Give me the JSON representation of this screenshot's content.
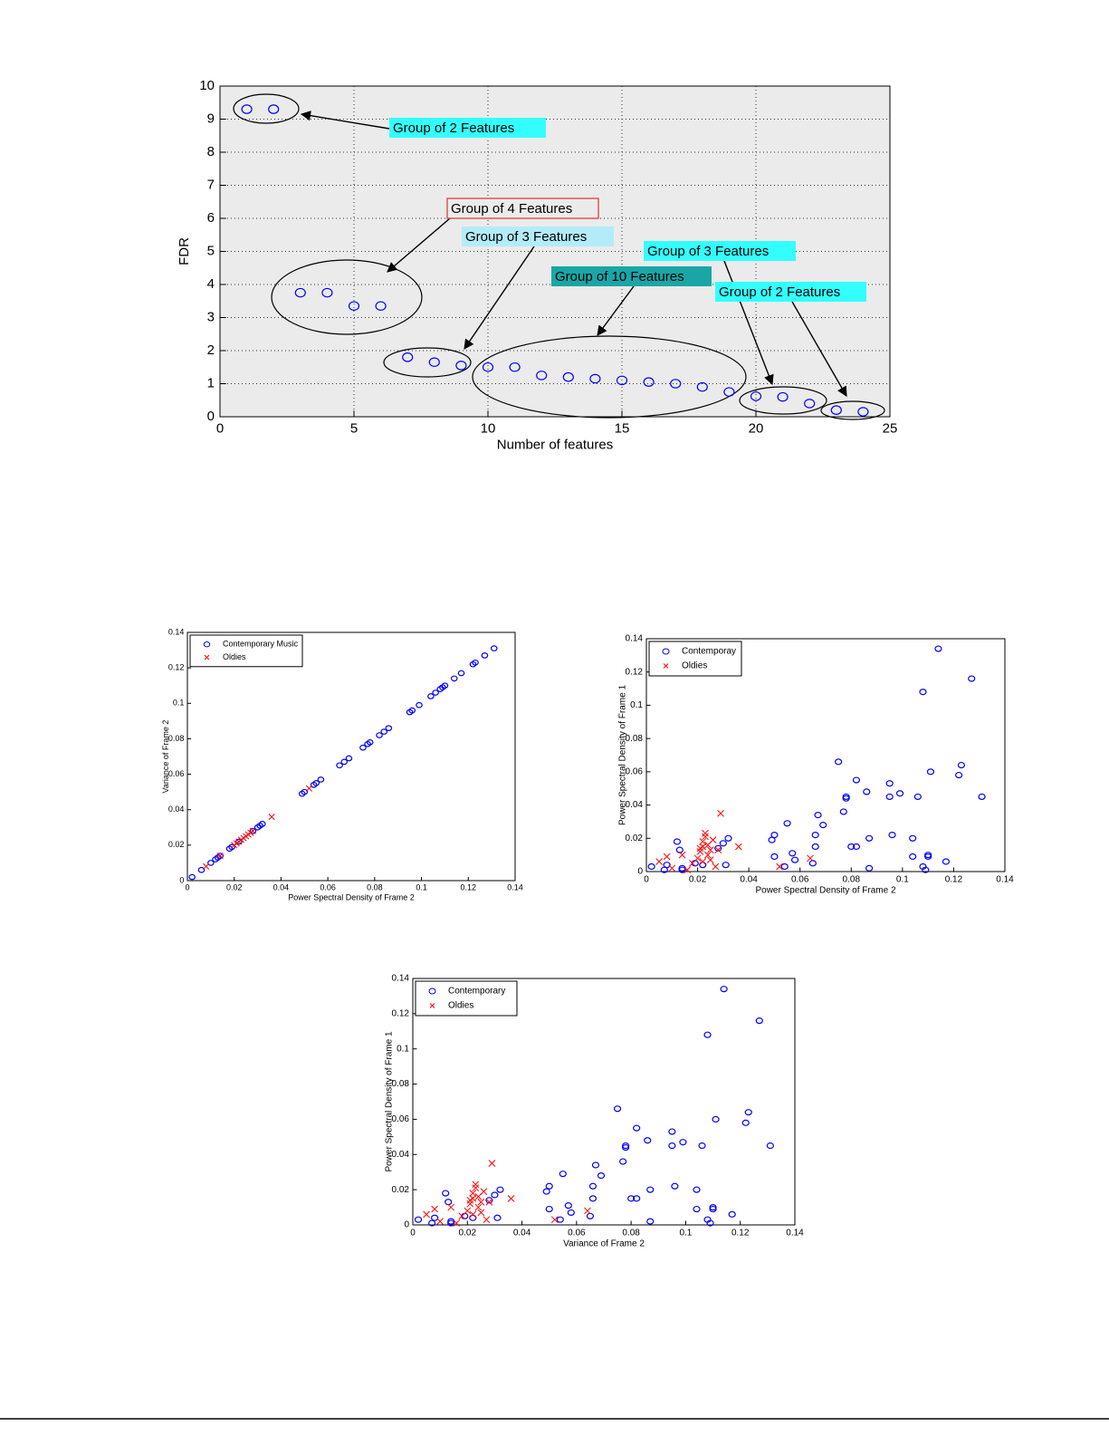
{
  "chart_data": [
    {
      "type": "scatter",
      "xlabel": "Number of features",
      "ylabel": "FDR",
      "grid": true,
      "color": "#0000ff",
      "marker": "o",
      "x": [
        1,
        2,
        3,
        4,
        5,
        6,
        7,
        8,
        9,
        10,
        11,
        12,
        13,
        14,
        15,
        16,
        17,
        18,
        19,
        20,
        21,
        22,
        23,
        24
      ],
      "values": [
        9.3,
        9.3,
        3.75,
        3.75,
        3.35,
        3.35,
        1.8,
        1.65,
        1.55,
        1.5,
        1.5,
        1.25,
        1.2,
        1.15,
        1.1,
        1.05,
        1.0,
        0.9,
        0.75,
        0.62,
        0.6,
        0.4,
        0.2,
        0.15
      ],
      "xlim": [
        0,
        25
      ],
      "xticks": [
        0,
        5,
        10,
        15,
        20,
        25
      ],
      "ylim": [
        0,
        10
      ],
      "yticks": [
        0,
        1,
        2,
        3,
        4,
        5,
        6,
        7,
        8,
        9,
        10
      ],
      "annotations": [
        {
          "text": "Group of 2 Features",
          "color": "#33ffff"
        },
        {
          "text": "Group of 4 Features",
          "color": "#ebebeb",
          "edgecolor": "#e03030"
        },
        {
          "text": "Group of 3 Features",
          "color": "#b3ecf8"
        },
        {
          "text": "Group of 10 Features",
          "color": "#1aa6a6"
        },
        {
          "text": "Group of 3 Features",
          "color": "#33ffff"
        },
        {
          "text": "Group of 2 Features",
          "color": "#33ffff"
        }
      ]
    },
    {
      "type": "scatter",
      "xlabel": "Power Spectral Density of Frame 2",
      "ylabel": "Variance of Frame 2",
      "legend": "upper left",
      "xlim": [
        0,
        0.14
      ],
      "xticks": [
        0,
        0.02,
        0.04,
        0.06,
        0.08,
        0.1,
        0.12,
        0.14
      ],
      "ylim": [
        0,
        0.14
      ],
      "yticks": [
        0,
        0.02,
        0.04,
        0.06,
        0.08,
        0.1,
        0.12,
        0.14
      ],
      "series": [
        {
          "name": "Contemporary Music",
          "color": "#0000ff",
          "marker": "o",
          "x": [
            0.002,
            0.006,
            0.01,
            0.012,
            0.013,
            0.014,
            0.018,
            0.019,
            0.022,
            0.028,
            0.03,
            0.031,
            0.032,
            0.049,
            0.05,
            0.054,
            0.055,
            0.057,
            0.065,
            0.067,
            0.069,
            0.075,
            0.077,
            0.078,
            0.082,
            0.084,
            0.086,
            0.095,
            0.096,
            0.099,
            0.104,
            0.106,
            0.108,
            0.109,
            0.11,
            0.114,
            0.117,
            0.122,
            0.123,
            0.127,
            0.131
          ],
          "values": [
            0.002,
            0.006,
            0.01,
            0.012,
            0.013,
            0.014,
            0.018,
            0.019,
            0.022,
            0.028,
            0.03,
            0.031,
            0.032,
            0.049,
            0.05,
            0.054,
            0.055,
            0.057,
            0.065,
            0.067,
            0.069,
            0.075,
            0.077,
            0.078,
            0.082,
            0.084,
            0.086,
            0.095,
            0.096,
            0.099,
            0.104,
            0.106,
            0.108,
            0.109,
            0.11,
            0.114,
            0.117,
            0.122,
            0.123,
            0.127,
            0.131
          ]
        },
        {
          "name": "Oldies",
          "color": "#ff0000",
          "marker": "x",
          "x": [
            0.008,
            0.014,
            0.02,
            0.021,
            0.022,
            0.023,
            0.024,
            0.025,
            0.026,
            0.027,
            0.028,
            0.036,
            0.052
          ],
          "values": [
            0.008,
            0.014,
            0.02,
            0.021,
            0.022,
            0.023,
            0.024,
            0.025,
            0.026,
            0.027,
            0.028,
            0.036,
            0.052
          ]
        }
      ]
    },
    {
      "type": "scatter",
      "xlabel": "Power Spectral Density of Frame 2",
      "ylabel": "Power Spectral Density of Frame 1",
      "legend": "upper left",
      "xlim": [
        0,
        0.14
      ],
      "xticks": [
        0,
        0.02,
        0.04,
        0.06,
        0.08,
        0.1,
        0.12,
        0.14
      ],
      "ylim": [
        0,
        0.14
      ],
      "yticks": [
        0,
        0.02,
        0.04,
        0.06,
        0.08,
        0.1,
        0.12,
        0.14
      ],
      "series": [
        {
          "name": "Contemporay",
          "color": "#0000ff",
          "marker": "o",
          "x": [
            0.002,
            0.007,
            0.008,
            0.012,
            0.013,
            0.014,
            0.014,
            0.019,
            0.022,
            0.028,
            0.03,
            0.032,
            0.031,
            0.049,
            0.05,
            0.05,
            0.054,
            0.055,
            0.057,
            0.058,
            0.065,
            0.066,
            0.066,
            0.067,
            0.069,
            0.075,
            0.077,
            0.078,
            0.078,
            0.08,
            0.082,
            0.082,
            0.086,
            0.087,
            0.087,
            0.095,
            0.095,
            0.096,
            0.099,
            0.104,
            0.104,
            0.106,
            0.108,
            0.108,
            0.109,
            0.11,
            0.11,
            0.111,
            0.114,
            0.117,
            0.122,
            0.123,
            0.127,
            0.131
          ],
          "values": [
            0.003,
            0.001,
            0.004,
            0.018,
            0.013,
            0.002,
            0.001,
            0.005,
            0.004,
            0.014,
            0.017,
            0.02,
            0.004,
            0.019,
            0.009,
            0.022,
            0.003,
            0.029,
            0.011,
            0.007,
            0.005,
            0.015,
            0.022,
            0.034,
            0.028,
            0.066,
            0.036,
            0.044,
            0.045,
            0.015,
            0.055,
            0.015,
            0.048,
            0.02,
            0.002,
            0.045,
            0.053,
            0.022,
            0.047,
            0.009,
            0.02,
            0.045,
            0.108,
            0.003,
            0.001,
            0.01,
            0.009,
            0.06,
            0.134,
            0.006,
            0.058,
            0.064,
            0.116,
            0.045
          ]
        },
        {
          "name": "Oldies",
          "color": "#ff0000",
          "marker": "x",
          "x": [
            0.005,
            0.008,
            0.01,
            0.014,
            0.016,
            0.018,
            0.02,
            0.021,
            0.022,
            0.022,
            0.023,
            0.023,
            0.024,
            0.024,
            0.025,
            0.025,
            0.026,
            0.027,
            0.028,
            0.029,
            0.036,
            0.052,
            0.064,
            0.022,
            0.021
          ],
          "values": [
            0.006,
            0.009,
            0.002,
            0.01,
            0.001,
            0.005,
            0.008,
            0.012,
            0.015,
            0.018,
            0.021,
            0.023,
            0.016,
            0.01,
            0.007,
            0.013,
            0.019,
            0.003,
            0.013,
            0.035,
            0.015,
            0.003,
            0.008,
            0.006,
            0.014
          ]
        }
      ]
    },
    {
      "type": "scatter",
      "xlabel": "Variance of Frame 2",
      "ylabel": "Power Spectral Density of Frame 1",
      "legend": "upper left",
      "xlim": [
        0,
        0.14
      ],
      "xticks": [
        0,
        0.02,
        0.04,
        0.06,
        0.08,
        0.1,
        0.12,
        0.14
      ],
      "ylim": [
        0,
        0.14
      ],
      "yticks": [
        0,
        0.02,
        0.04,
        0.06,
        0.08,
        0.1,
        0.12,
        0.14
      ],
      "series": [
        {
          "name": "Contemporary",
          "color": "#0000ff",
          "marker": "o",
          "x": [
            0.002,
            0.007,
            0.008,
            0.012,
            0.013,
            0.014,
            0.014,
            0.019,
            0.022,
            0.028,
            0.03,
            0.032,
            0.031,
            0.049,
            0.05,
            0.05,
            0.054,
            0.055,
            0.057,
            0.058,
            0.065,
            0.066,
            0.066,
            0.067,
            0.069,
            0.075,
            0.077,
            0.078,
            0.078,
            0.08,
            0.082,
            0.082,
            0.086,
            0.087,
            0.087,
            0.095,
            0.095,
            0.096,
            0.099,
            0.104,
            0.104,
            0.106,
            0.108,
            0.108,
            0.109,
            0.11,
            0.11,
            0.111,
            0.114,
            0.117,
            0.122,
            0.123,
            0.127,
            0.131
          ],
          "values": [
            0.003,
            0.001,
            0.004,
            0.018,
            0.013,
            0.002,
            0.001,
            0.005,
            0.004,
            0.014,
            0.017,
            0.02,
            0.004,
            0.019,
            0.009,
            0.022,
            0.003,
            0.029,
            0.011,
            0.007,
            0.005,
            0.015,
            0.022,
            0.034,
            0.028,
            0.066,
            0.036,
            0.044,
            0.045,
            0.015,
            0.055,
            0.015,
            0.048,
            0.02,
            0.002,
            0.045,
            0.053,
            0.022,
            0.047,
            0.009,
            0.02,
            0.045,
            0.108,
            0.003,
            0.001,
            0.01,
            0.009,
            0.06,
            0.134,
            0.006,
            0.058,
            0.064,
            0.116,
            0.045
          ]
        },
        {
          "name": "Oldies",
          "color": "#ff0000",
          "marker": "x",
          "x": [
            0.005,
            0.008,
            0.01,
            0.014,
            0.016,
            0.018,
            0.02,
            0.021,
            0.022,
            0.022,
            0.023,
            0.023,
            0.024,
            0.024,
            0.025,
            0.025,
            0.026,
            0.027,
            0.028,
            0.029,
            0.036,
            0.052,
            0.064,
            0.022,
            0.021
          ],
          "values": [
            0.006,
            0.009,
            0.002,
            0.01,
            0.001,
            0.005,
            0.008,
            0.012,
            0.015,
            0.018,
            0.021,
            0.023,
            0.016,
            0.01,
            0.007,
            0.013,
            0.019,
            0.003,
            0.013,
            0.035,
            0.015,
            0.003,
            0.008,
            0.006,
            0.014
          ]
        }
      ]
    }
  ]
}
